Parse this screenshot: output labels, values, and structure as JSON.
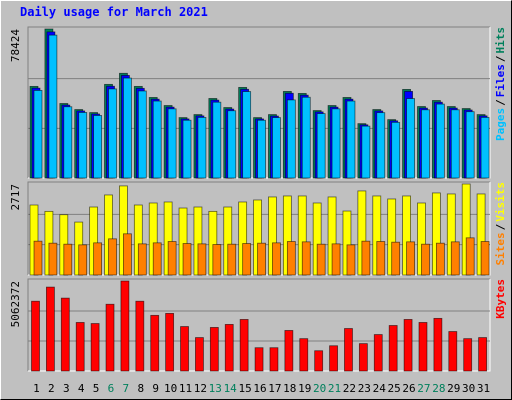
{
  "chart_data": [
    {
      "type": "bar",
      "title": "Daily usage for March 2021",
      "ylim": [
        0,
        78424
      ],
      "yticks": [
        78424
      ],
      "grid": true,
      "legend_separator": "/",
      "series": [
        {
          "name": "Hits",
          "color": "#00805c",
          "values": [
            48220,
            78424,
            39210,
            36030,
            34440,
            49280,
            55110,
            48220,
            42390,
            38150,
            31790,
            33380,
            41860,
            37090,
            47690,
            31790,
            33380,
            45570,
            44510,
            35500,
            38150,
            42390,
            28610,
            36030,
            30730,
            46630,
            37620,
            40800,
            37620,
            36560,
            33380
          ]
        },
        {
          "name": "Files",
          "color": "#0000ff",
          "values": [
            47300,
            76900,
            38400,
            35300,
            33700,
            48300,
            54000,
            47200,
            41500,
            37300,
            31100,
            32700,
            41000,
            36300,
            46700,
            31100,
            32600,
            44600,
            43600,
            34800,
            37300,
            41500,
            28000,
            35300,
            30100,
            45600,
            36800,
            39900,
            36800,
            35800,
            32700
          ]
        },
        {
          "name": "Pages",
          "color": "#00c0ff",
          "values": [
            46100,
            75200,
            37500,
            34500,
            32900,
            46900,
            52600,
            45800,
            40500,
            36400,
            30400,
            31900,
            39900,
            35400,
            45500,
            30400,
            31800,
            41100,
            42500,
            33900,
            36400,
            40500,
            27300,
            34400,
            29300,
            41800,
            35900,
            38900,
            35900,
            34900,
            31900
          ]
        }
      ]
    },
    {
      "type": "bar",
      "ylim": [
        0,
        2717
      ],
      "yticks": [
        2717
      ],
      "grid": true,
      "legend_separator": "/",
      "series": [
        {
          "name": "Visits",
          "color": "#ffff00",
          "values": [
            2090,
            1900,
            1800,
            1580,
            2030,
            2390,
            2660,
            2090,
            2150,
            2180,
            2000,
            2030,
            1900,
            2030,
            2180,
            2240,
            2330,
            2360,
            2360,
            2150,
            2330,
            1910,
            2510,
            2360,
            2270,
            2360,
            2150,
            2450,
            2420,
            2717,
            2420
          ]
        },
        {
          "name": "Sites",
          "color": "#ff8000",
          "values": [
            1010,
            950,
            920,
            900,
            960,
            1080,
            1230,
            930,
            960,
            1000,
            940,
            930,
            910,
            920,
            940,
            950,
            960,
            1000,
            990,
            920,
            930,
            900,
            1010,
            1000,
            980,
            990,
            920,
            950,
            990,
            1110,
            1000
          ]
        }
      ]
    },
    {
      "type": "bar",
      "ylim": [
        0,
        5062372
      ],
      "yticks": [
        5062372
      ],
      "grid": true,
      "categories": [
        "1",
        "2",
        "3",
        "4",
        "5",
        "6",
        "7",
        "8",
        "9",
        "10",
        "11",
        "12",
        "13",
        "14",
        "15",
        "16",
        "17",
        "18",
        "19",
        "20",
        "21",
        "22",
        "23",
        "24",
        "25",
        "26",
        "27",
        "28",
        "29",
        "30",
        "31"
      ],
      "category_colors": [
        "#000000",
        "#000000",
        "#000000",
        "#000000",
        "#000000",
        "#00805c",
        "#00805c",
        "#000000",
        "#000000",
        "#000000",
        "#000000",
        "#000000",
        "#00805c",
        "#00805c",
        "#000000",
        "#000000",
        "#000000",
        "#000000",
        "#000000",
        "#00805c",
        "#00805c",
        "#000000",
        "#000000",
        "#000000",
        "#000000",
        "#000000",
        "#00805c",
        "#00805c",
        "#000000",
        "#000000",
        "#000000"
      ],
      "series": [
        {
          "name": "KBytes",
          "color": "#ff0000",
          "values": [
            3925000,
            4720000,
            4100000,
            2730000,
            2670000,
            3755000,
            5062372,
            3925000,
            3130000,
            3240000,
            2500000,
            1880000,
            2450000,
            2620000,
            2900000,
            1310000,
            1310000,
            2280000,
            1820000,
            1140000,
            1420000,
            2390000,
            1540000,
            2050000,
            2560000,
            2900000,
            2730000,
            2960000,
            2220000,
            1820000,
            1880000
          ]
        }
      ]
    }
  ]
}
